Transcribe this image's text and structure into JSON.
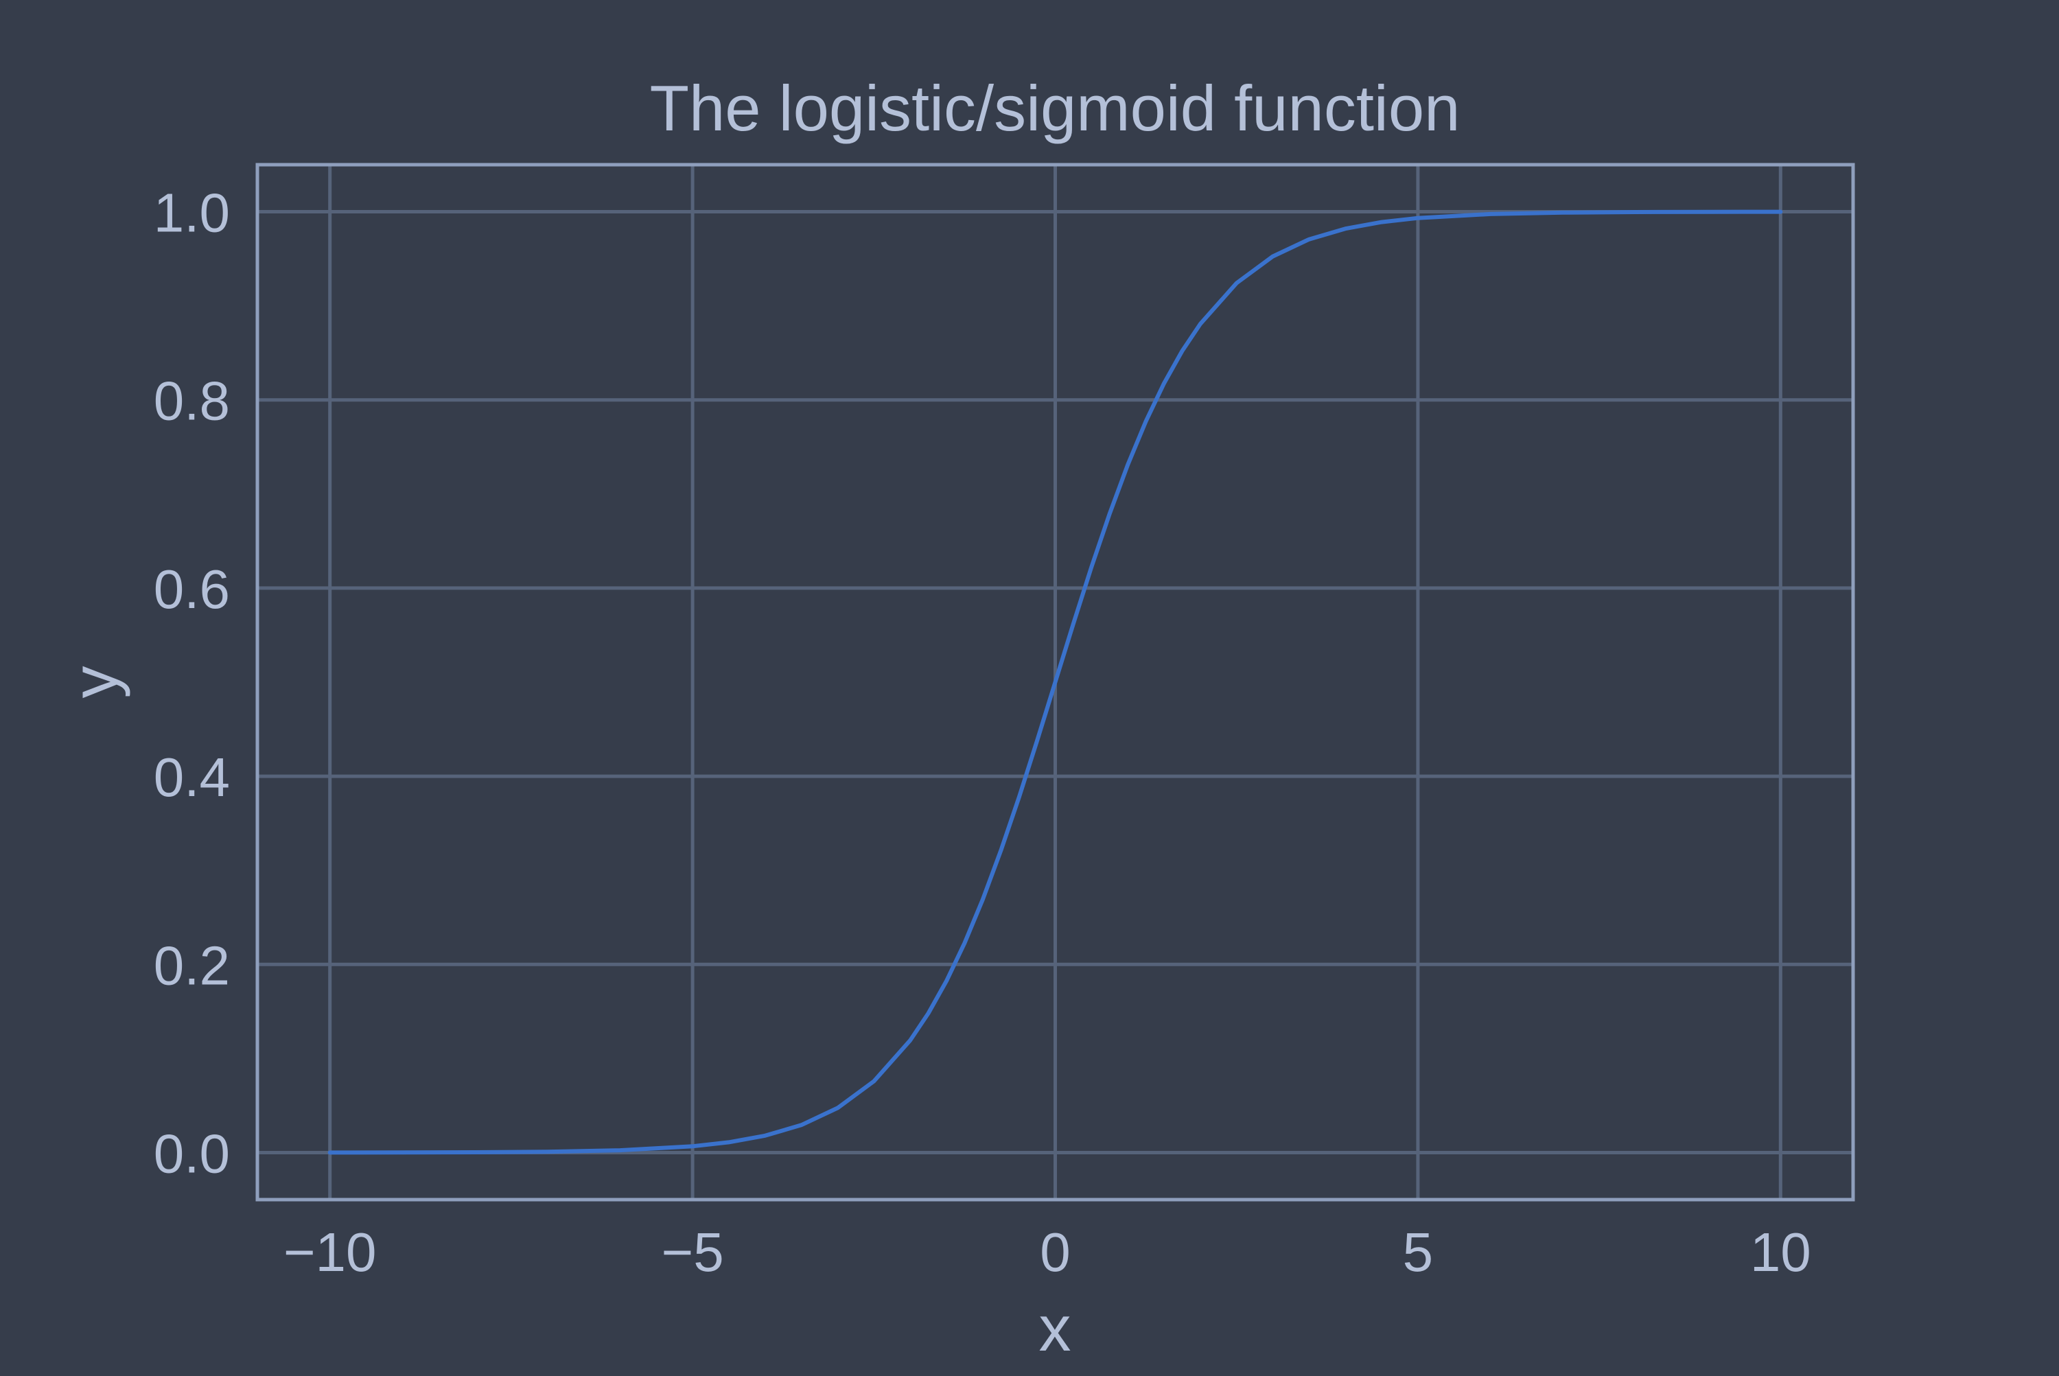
{
  "colors": {
    "background": "#363d4b",
    "frame": "#8f9fbd",
    "grid": "#56637a",
    "text": "#b4c0d8",
    "line": "#3a72cc"
  },
  "chart_data": {
    "type": "line",
    "title": "The logistic/sigmoid function",
    "xlabel": "x",
    "ylabel": "y",
    "function": "1 / (1 + exp(-x))",
    "xlim": [
      -11,
      11
    ],
    "ylim": [
      -0.05,
      1.05
    ],
    "x_ticks": [
      -10,
      -5,
      0,
      5,
      10
    ],
    "x_tick_labels": [
      "−10",
      "−5",
      "0",
      "5",
      "10"
    ],
    "y_ticks": [
      0.0,
      0.2,
      0.4,
      0.6,
      0.8,
      1.0
    ],
    "y_tick_labels": [
      "0.0",
      "0.2",
      "0.4",
      "0.6",
      "0.8",
      "1.0"
    ],
    "grid": true,
    "series": [
      {
        "name": "sigmoid",
        "x": [
          -10,
          -9,
          -8,
          -7,
          -6,
          -5,
          -4.5,
          -4,
          -3.5,
          -3,
          -2.5,
          -2,
          -1.75,
          -1.5,
          -1.25,
          -1,
          -0.75,
          -0.5,
          -0.25,
          0,
          0.25,
          0.5,
          0.75,
          1,
          1.25,
          1.5,
          1.75,
          2,
          2.5,
          3,
          3.5,
          4,
          4.5,
          5,
          6,
          7,
          8,
          9,
          10
        ],
        "y": [
          4.54e-05,
          0.0001234,
          0.0003354,
          0.0009111,
          0.0024726,
          0.0066929,
          0.0109869,
          0.0179862,
          0.0293122,
          0.0474259,
          0.0758582,
          0.1192029,
          0.1480472,
          0.1824255,
          0.2227001,
          0.2689414,
          0.3208213,
          0.3775407,
          0.4378235,
          0.5,
          0.5621765,
          0.6224593,
          0.6791787,
          0.7310586,
          0.7772999,
          0.8175745,
          0.8519528,
          0.8807971,
          0.9241418,
          0.9525741,
          0.9706878,
          0.9820138,
          0.9890131,
          0.9933071,
          0.9975274,
          0.9990889,
          0.9996646,
          0.9998766,
          0.9999546
        ]
      }
    ]
  }
}
